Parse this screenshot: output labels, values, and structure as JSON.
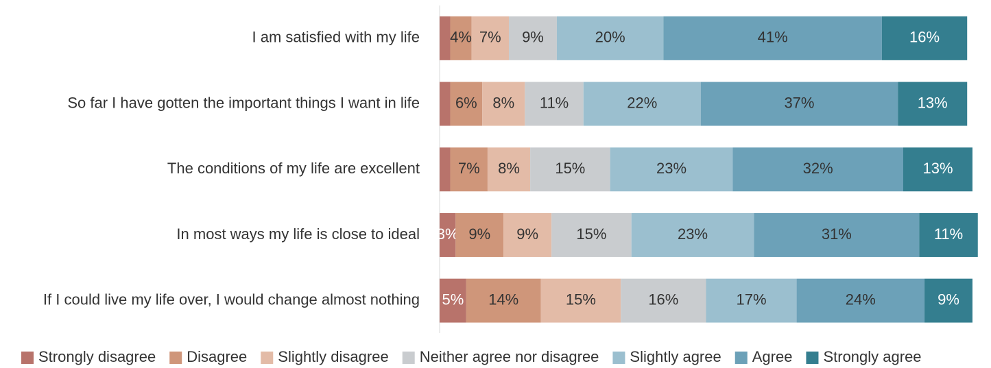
{
  "chart_data": {
    "type": "stacked-bar-horizontal",
    "categories": [
      "I am satisfied with my life",
      "So far I have gotten the important things I want in life",
      "The conditions of my life are excellent",
      "In most ways my life is close to ideal",
      "If I could live my life over, I would change almost nothing"
    ],
    "xlim": [
      0,
      100
    ],
    "legend": "bottom",
    "series": [
      {
        "name": "Strongly disagree",
        "color": "#b8736b",
        "values": [
          2,
          2,
          2,
          3,
          5
        ],
        "value_labels": [
          null,
          null,
          null,
          "3%",
          "5%"
        ]
      },
      {
        "name": "Disagree",
        "color": "#cf967a",
        "values": [
          4,
          6,
          7,
          9,
          14
        ],
        "value_labels": [
          "4%",
          "6%",
          "7%",
          "9%",
          "14%"
        ]
      },
      {
        "name": "Slightly disagree",
        "color": "#e3bba7",
        "values": [
          7,
          8,
          8,
          9,
          15
        ],
        "value_labels": [
          "7%",
          "8%",
          "8%",
          "9%",
          "15%"
        ]
      },
      {
        "name": "Neither agree nor disagree",
        "color": "#c9cccf",
        "values": [
          9,
          11,
          15,
          15,
          16
        ],
        "value_labels": [
          "9%",
          "11%",
          "15%",
          "15%",
          "16%"
        ]
      },
      {
        "name": "Slightly agree",
        "color": "#9bbfcf",
        "values": [
          20,
          22,
          23,
          23,
          17
        ],
        "value_labels": [
          "20%",
          "22%",
          "23%",
          "23%",
          "17%"
        ]
      },
      {
        "name": "Agree",
        "color": "#6ca1b8",
        "values": [
          41,
          37,
          32,
          31,
          24
        ],
        "value_labels": [
          "41%",
          "37%",
          "32%",
          "31%",
          "24%"
        ]
      },
      {
        "name": "Strongly agree",
        "color": "#347e8f",
        "values": [
          16,
          13,
          13,
          11,
          9
        ],
        "value_labels": [
          "16%",
          "13%",
          "13%",
          "11%",
          "9%"
        ]
      }
    ]
  }
}
